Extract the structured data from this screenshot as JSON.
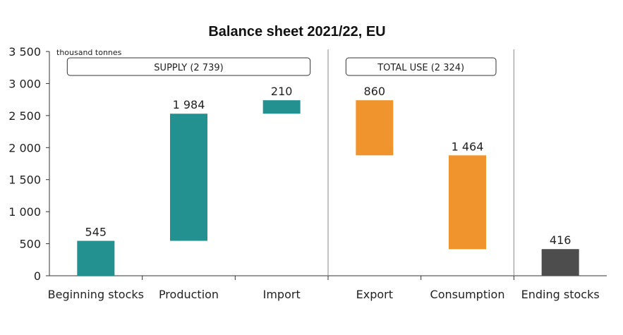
{
  "chart_data": {
    "type": "bar",
    "subtype": "waterfall",
    "title": "Balance sheet 2021/22, EU",
    "unit_label": "thousand tonnes",
    "ylim": [
      0,
      3500
    ],
    "yticks": [
      0,
      500,
      1000,
      1500,
      2000,
      2500,
      3000,
      3500
    ],
    "ytick_labels": [
      "0",
      "500",
      "1 000",
      "1 500",
      "2 000",
      "2 500",
      "3 000",
      "3 500"
    ],
    "groups": [
      {
        "label": "SUPPLY (2 739)",
        "categories": [
          "Beginning stocks",
          "Production",
          "Import"
        ]
      },
      {
        "label": "TOTAL USE (2 324)",
        "categories": [
          "Export",
          "Consumption"
        ]
      }
    ],
    "categories": [
      "Beginning stocks",
      "Production",
      "Import",
      "Export",
      "Consumption",
      "Ending stocks"
    ],
    "bars": [
      {
        "category": "Beginning stocks",
        "value": 545,
        "label": "545",
        "start": 0,
        "end": 545,
        "color": "#23918f"
      },
      {
        "category": "Production",
        "value": 1984,
        "label": "1 984",
        "start": 545,
        "end": 2529,
        "color": "#23918f"
      },
      {
        "category": "Import",
        "value": 210,
        "label": "210",
        "start": 2529,
        "end": 2739,
        "color": "#23918f"
      },
      {
        "category": "Export",
        "value": 860,
        "label": "860",
        "start": 2739,
        "end": 1879,
        "color": "#f0952e"
      },
      {
        "category": "Consumption",
        "value": 1464,
        "label": "1 464",
        "start": 1879,
        "end": 415,
        "color": "#f0952e"
      },
      {
        "category": "Ending stocks",
        "value": 416,
        "label": "416",
        "start": 0,
        "end": 416,
        "color": "#4d4d4d"
      }
    ],
    "grid": false
  }
}
